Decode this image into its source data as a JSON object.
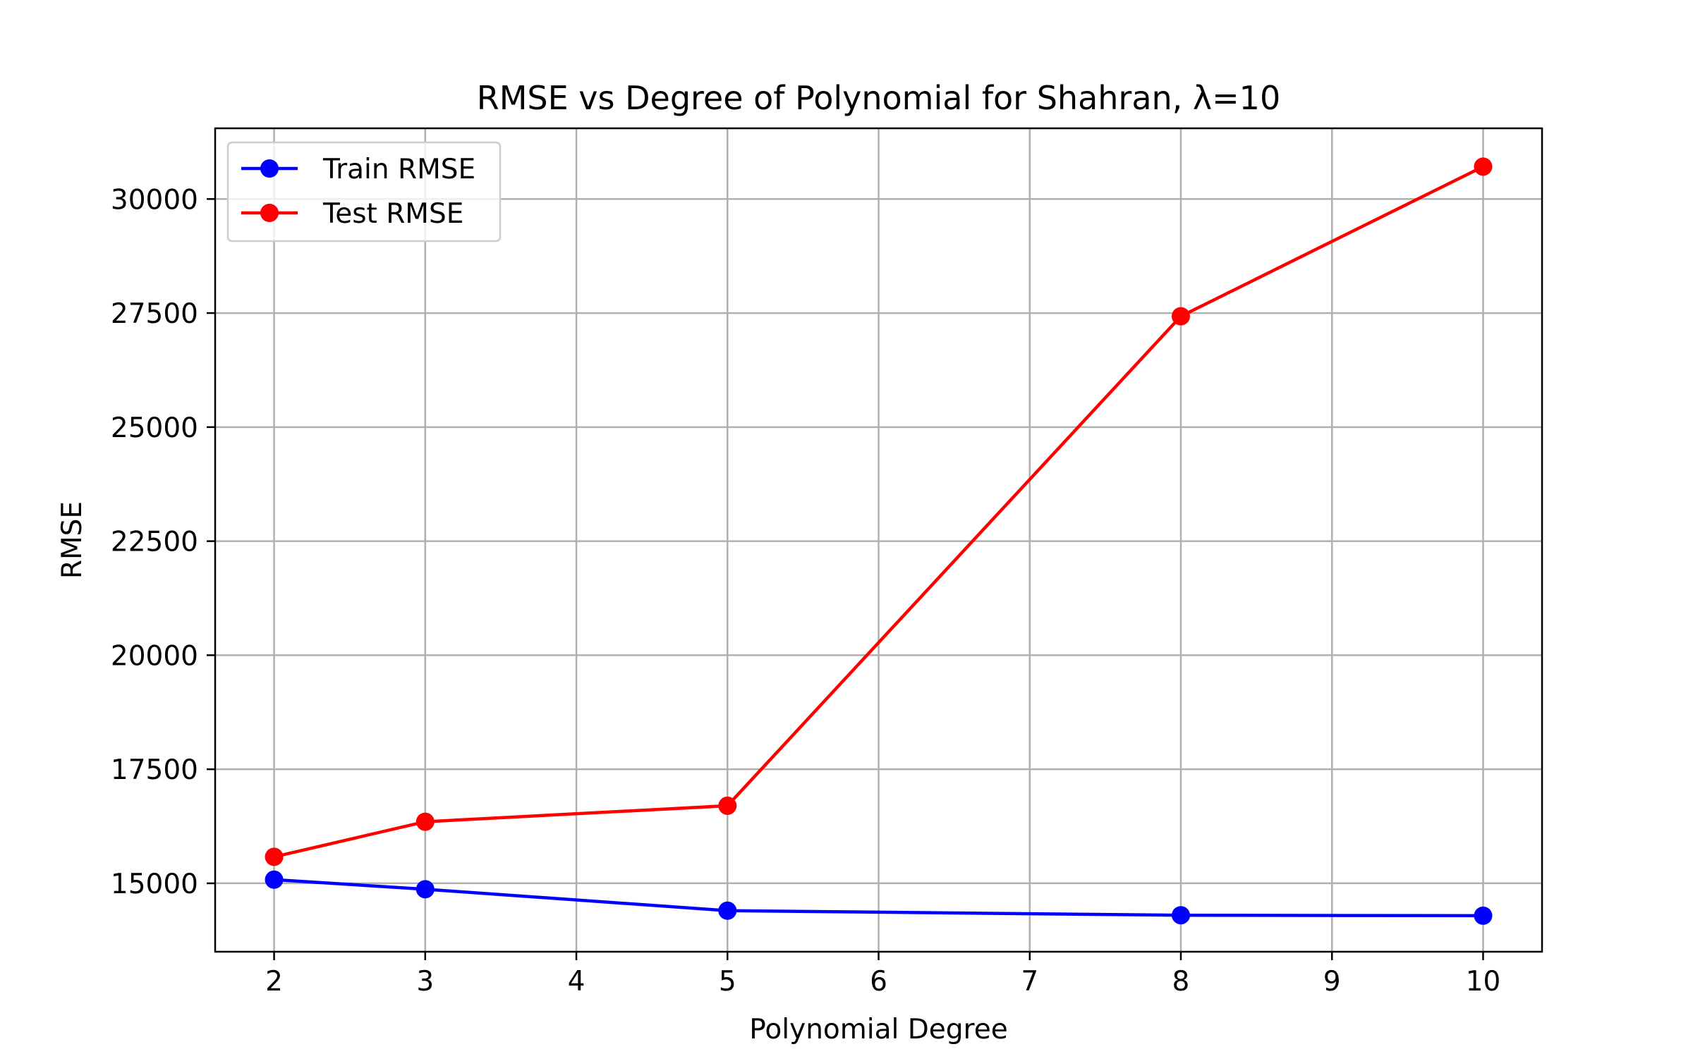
{
  "chart_data": {
    "type": "line",
    "title": "RMSE vs Degree of Polynomial for Shahran, λ=10",
    "xlabel": "Polynomial Degree",
    "ylabel": "RMSE",
    "x": [
      2,
      3,
      5,
      8,
      10
    ],
    "xlim": [
      1.61,
      10.39
    ],
    "ylim": [
      13500,
      31550
    ],
    "xticks": [
      2,
      3,
      4,
      5,
      6,
      7,
      8,
      9,
      10
    ],
    "yticks": [
      15000,
      17500,
      20000,
      22500,
      25000,
      27500,
      30000
    ],
    "grid": true,
    "legend_position": "top-left",
    "series": [
      {
        "name": "Train RMSE",
        "color": "#0000ff",
        "values": [
          15080,
          14870,
          14400,
          14300,
          14290
        ]
      },
      {
        "name": "Test RMSE",
        "color": "#ff0000",
        "values": [
          15580,
          16350,
          16700,
          27430,
          30710
        ]
      }
    ]
  }
}
